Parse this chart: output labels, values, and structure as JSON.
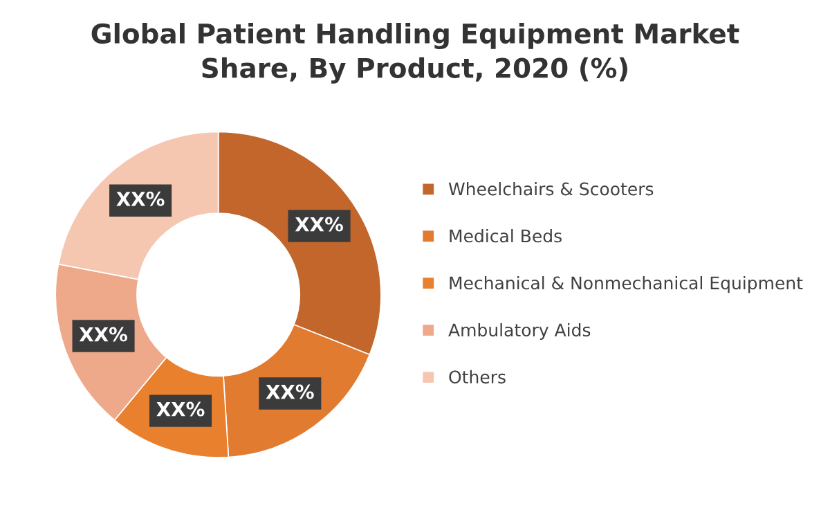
{
  "chart_data": {
    "type": "donut",
    "title": "Global Patient Handling Equipment Market\nShare, By Product, 2020 (%)",
    "categories": [
      "Wheelchairs & Scooters",
      "Medical Beds",
      "Mechanical & Nonmechanical Equipment",
      "Ambulatory Aids",
      "Others"
    ],
    "values": [
      31,
      18,
      12,
      17,
      22
    ],
    "colors": [
      "#c2662c",
      "#e07b30",
      "#e8802e",
      "#eea98a",
      "#f5c6b0"
    ],
    "value_labels": [
      "XX%",
      "XX%",
      "XX%",
      "XX%",
      "XX%"
    ],
    "legend": "right"
  }
}
